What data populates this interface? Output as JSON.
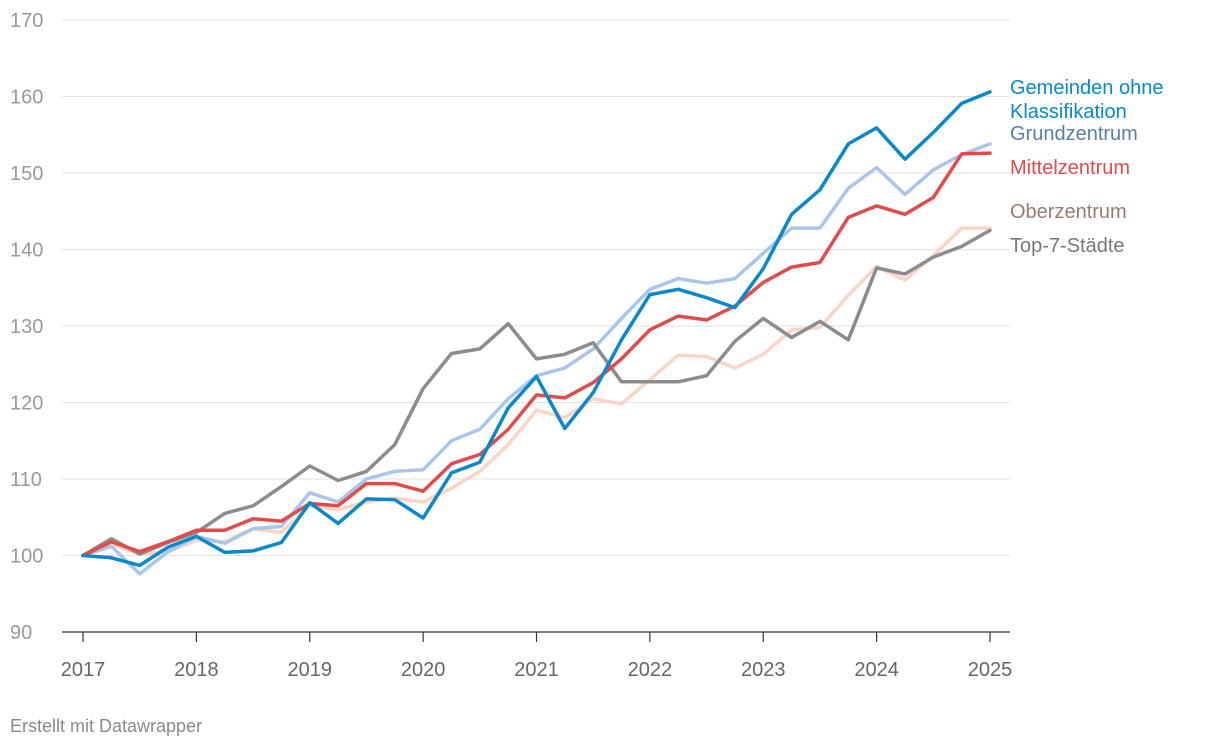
{
  "chart_data": {
    "type": "line",
    "title": "",
    "xlabel": "",
    "ylabel": "",
    "ylim": [
      90,
      170
    ],
    "xlim": [
      2017,
      2025
    ],
    "y_ticks": [
      90,
      100,
      110,
      120,
      130,
      140,
      150,
      160,
      170
    ],
    "x_ticks": [
      "2017",
      "2018",
      "2019",
      "2020",
      "2021",
      "2022",
      "2023",
      "2024",
      "2025"
    ],
    "grid": true,
    "legend_placement": "right (labels at line ends)",
    "x": [
      2017,
      2017.25,
      2017.5,
      2017.75,
      2018,
      2018.25,
      2018.5,
      2018.75,
      2019,
      2019.25,
      2019.5,
      2019.75,
      2020,
      2020.25,
      2020.5,
      2020.75,
      2021,
      2021.25,
      2021.5,
      2021.75,
      2022,
      2022.25,
      2022.5,
      2022.75,
      2023,
      2023.25,
      2023.5,
      2023.75,
      2024,
      2024.25,
      2024.5,
      2024.75,
      2025
    ],
    "series": [
      {
        "name": "Oberzentrum",
        "color": "#fbd4c6",
        "values": [
          100,
          101.5,
          100.2,
          100.5,
          102,
          101.8,
          103.5,
          103,
          106.5,
          106,
          107,
          107.5,
          107,
          108.8,
          111,
          114.5,
          119,
          118,
          120.5,
          119.8,
          123,
          126.2,
          126,
          124.5,
          126.3,
          129.5,
          129.8,
          134,
          137.8,
          136,
          139.2,
          142.8,
          142.8
        ]
      },
      {
        "name": "Grundzentrum",
        "color": "#a9c6ea",
        "values": [
          100,
          101.2,
          97.6,
          100.5,
          102.5,
          101.6,
          103.5,
          103.8,
          108.2,
          107,
          110,
          111,
          111.2,
          115,
          116.5,
          120.5,
          123.5,
          124.5,
          127,
          131,
          134.8,
          136.2,
          135.6,
          136.2,
          139.5,
          142.8,
          142.8,
          148,
          150.7,
          147.2,
          150.4,
          152.4,
          153.8
        ]
      },
      {
        "name": "Top-7-Städte",
        "color": "#8c8c8c",
        "values": [
          100,
          102.2,
          100.2,
          101.7,
          103,
          105.5,
          106.5,
          109,
          111.7,
          109.8,
          111,
          114.5,
          121.8,
          126.4,
          127,
          130.3,
          125.7,
          126.3,
          127.8,
          122.7,
          122.7,
          122.7,
          123.5,
          128,
          131,
          128.5,
          130.6,
          128.2,
          137.6,
          136.8,
          139,
          140.4,
          142.5
        ]
      },
      {
        "name": "Mittelzentrum",
        "color": "#e24b4b",
        "values": [
          100,
          101.8,
          100.5,
          101.8,
          103.3,
          103.3,
          104.8,
          104.5,
          106.8,
          106.5,
          109.4,
          109.4,
          108.4,
          112,
          113.2,
          116.5,
          121,
          120.6,
          122.6,
          125.7,
          129.5,
          131.3,
          130.8,
          132.6,
          135.7,
          137.7,
          138.3,
          144.2,
          145.7,
          144.6,
          146.8,
          152.5,
          152.6
        ]
      },
      {
        "name": "Gemeinden ohne Klassifikation",
        "color": "#0a88c9",
        "values": [
          100,
          99.7,
          98.7,
          101.1,
          102.5,
          100.4,
          100.6,
          101.7,
          106.9,
          104.2,
          107.4,
          107.3,
          104.9,
          110.8,
          112.2,
          119.3,
          123.4,
          116.6,
          121.3,
          128.2,
          134.1,
          134.8,
          133.7,
          132.4,
          137.5,
          144.6,
          147.8,
          153.8,
          155.9,
          151.8,
          155.3,
          159.1,
          160.6
        ]
      }
    ],
    "end_labels": [
      {
        "lines": [
          "Gemeinden ohne",
          "Klassifikation"
        ],
        "color": "#0a88c9"
      },
      {
        "lines": [
          "Grundzentrum"
        ],
        "color": "#5b7ea8"
      },
      {
        "lines": [
          "Mittelzentrum"
        ],
        "color": "#e24b4b"
      },
      {
        "lines": [
          "Oberzentrum"
        ],
        "color": "#9a7b70"
      },
      {
        "lines": [
          "Top-7-Städte"
        ],
        "color": "#777777"
      }
    ]
  },
  "footer": {
    "credit": "Erstellt mit Datawrapper"
  }
}
